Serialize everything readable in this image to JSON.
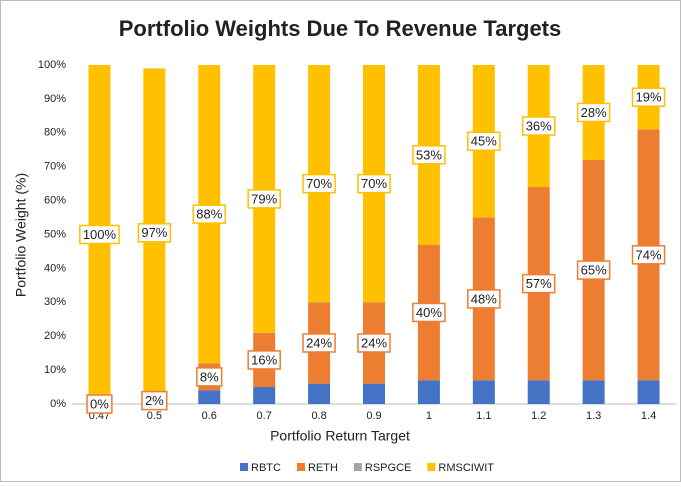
{
  "chart_data": {
    "type": "stacked_bar",
    "title": "Portfolio Weights Due To Revenue Targets",
    "x_label": "Portfolio Return Target",
    "y_label": "Portfolio Weight (%)",
    "categories": [
      "0.47",
      "0.5",
      "0.6",
      "0.7",
      "0.8",
      "0.9",
      "1",
      "1.1",
      "1.2",
      "1.3",
      "1.4"
    ],
    "series": [
      {
        "name": "RBTC",
        "color": "#4472c4",
        "values": [
          0,
          0,
          4,
          5,
          6,
          6,
          7,
          7,
          7,
          7,
          7
        ]
      },
      {
        "name": "RETH",
        "color": "#ed7d31",
        "values": [
          0,
          2,
          8,
          16,
          24,
          24,
          40,
          48,
          57,
          65,
          74
        ],
        "value_labels": [
          "0%",
          "2%",
          "8%",
          "16%",
          "24%",
          "24%",
          "40%",
          "48%",
          "57%",
          "65%",
          "74%"
        ]
      },
      {
        "name": "RSPGCE",
        "color": "#a5a5a5",
        "values": [
          0,
          0,
          0,
          0,
          0,
          0,
          0,
          0,
          0,
          0,
          0
        ]
      },
      {
        "name": "RMSCIWIT",
        "color": "#ffc000",
        "values": [
          100,
          97,
          88,
          79,
          70,
          70,
          53,
          45,
          36,
          28,
          19
        ],
        "value_labels": [
          "100%",
          "97%",
          "88%",
          "79%",
          "70%",
          "70%",
          "53%",
          "45%",
          "36%",
          "28%",
          "19%"
        ]
      }
    ],
    "ylim": [
      0,
      100
    ],
    "yticks": [
      {
        "value": 0,
        "label": "0%"
      },
      {
        "value": 10,
        "label": "10%"
      },
      {
        "value": 20,
        "label": "20%"
      },
      {
        "value": 30,
        "label": "30%"
      },
      {
        "value": 40,
        "label": "40%"
      },
      {
        "value": 50,
        "label": "50%"
      },
      {
        "value": 60,
        "label": "60%"
      },
      {
        "value": 70,
        "label": "70%"
      },
      {
        "value": 80,
        "label": "80%"
      },
      {
        "value": 90,
        "label": "90%"
      },
      {
        "value": 100,
        "label": "100%"
      }
    ],
    "grid": false,
    "legend": "bottom"
  }
}
